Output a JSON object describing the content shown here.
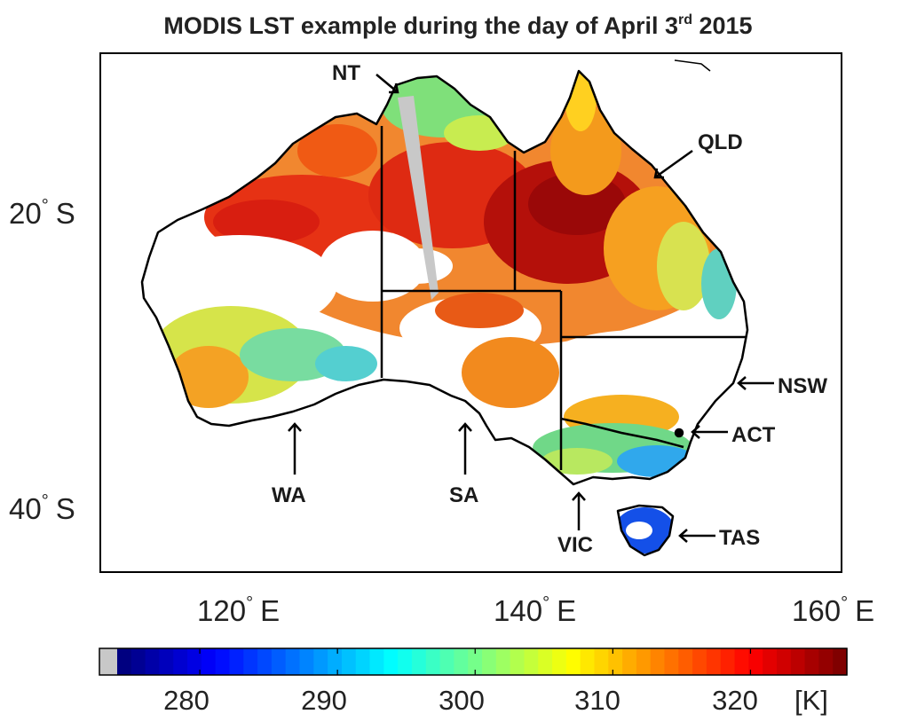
{
  "title": {
    "main": "MODIS LST example during the day of April 3",
    "sup": "rd",
    "tail": " 2015"
  },
  "map": {
    "lat_ticks": [
      {
        "value": "20",
        "deg": "°",
        "hem": "S"
      },
      {
        "value": "40",
        "deg": "°",
        "hem": "S"
      }
    ],
    "lon_ticks": [
      {
        "value": "120",
        "deg": "°",
        "hem": "E"
      },
      {
        "value": "140",
        "deg": "°",
        "hem": "E"
      },
      {
        "value": "160",
        "deg": "°",
        "hem": "E"
      }
    ],
    "states": [
      "NT",
      "QLD",
      "NSW",
      "ACT",
      "WA",
      "SA",
      "VIC",
      "TAS"
    ],
    "colors": {
      "land_border": "#000000",
      "no_data": "#ffffff",
      "missing": "#c8c8c8"
    }
  },
  "colorbar": {
    "ticks": [
      "280",
      "290",
      "300",
      "310",
      "320"
    ],
    "unit": "[K]",
    "range_k": [
      274,
      327
    ],
    "missing_color": "#c8c8c8",
    "colormap": "jet"
  }
}
